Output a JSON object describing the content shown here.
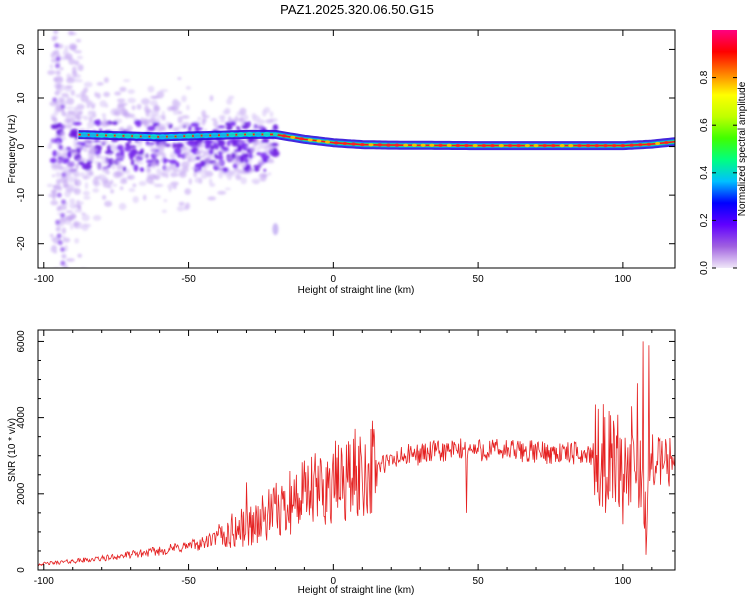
{
  "title": "PAZ1.2025.320.06.50.G15",
  "spectrogram": {
    "type": "heatmap",
    "xlabel": "Height of straight line (km)",
    "ylabel": "Frequency (Hz)",
    "xlim": [
      -102,
      118
    ],
    "ylim": [
      -25,
      24
    ],
    "xticks": [
      -100,
      -50,
      0,
      50,
      100
    ],
    "yticks": [
      -20,
      -10,
      0,
      10,
      20
    ],
    "colorbar": {
      "label": "Normalized spectral amplitude",
      "range": [
        0.0,
        1.0
      ],
      "ticks": [
        "0.0",
        "0.2",
        "0.4",
        "0.6",
        "0.8"
      ],
      "stops": [
        "#f0e8f8",
        "#a060e0",
        "#6000ff",
        "#0000ff",
        "#00c0ff",
        "#00ff80",
        "#40ff00",
        "#c0ff00",
        "#ffff00",
        "#ff8000",
        "#ff0000",
        "#ff0080"
      ]
    },
    "ridge": {
      "x": [
        -90,
        -60,
        -30,
        -20,
        -10,
        0,
        10,
        20,
        50,
        100,
        110,
        118
      ],
      "freq": [
        2.5,
        2.0,
        2.5,
        2.5,
        1.5,
        0.8,
        0.4,
        0.3,
        0.2,
        0.2,
        0.5,
        1.0
      ]
    }
  },
  "snr": {
    "type": "line",
    "xlabel": "Height of straight line (km)",
    "ylabel": "SNR (10 * v/v)",
    "xlim": [
      -102,
      118
    ],
    "ylim": [
      0,
      6300
    ],
    "xticks": [
      -100,
      -50,
      0,
      50,
      100
    ],
    "yticks": [
      0,
      2000,
      4000,
      6000
    ],
    "color": "#e52222",
    "trend": {
      "x": [
        -102,
        -80,
        -60,
        -45,
        -35,
        -25,
        -18,
        -12,
        -5,
        5,
        15,
        25,
        35,
        45,
        55,
        70,
        85,
        95,
        100,
        105,
        108,
        110,
        112,
        118
      ],
      "y": [
        150,
        300,
        500,
        700,
        1000,
        1300,
        1600,
        1850,
        2100,
        2400,
        2700,
        3000,
        3100,
        3150,
        3150,
        3100,
        3050,
        3000,
        2800,
        2400,
        1500,
        2900,
        2850,
        2850
      ]
    },
    "spikes": [
      {
        "x": -15,
        "y": 2600
      },
      {
        "x": -30,
        "y": 2300
      },
      {
        "x": 13,
        "y": 3700
      },
      {
        "x": 46,
        "y": 4200
      },
      {
        "x": 46,
        "y": 1500
      },
      {
        "x": 103,
        "y": 4300
      },
      {
        "x": 105,
        "y": 4900
      },
      {
        "x": 106,
        "y": 3400
      },
      {
        "x": 107,
        "y": 6000
      },
      {
        "x": 108,
        "y": 6300
      },
      {
        "x": 109,
        "y": 5900
      },
      {
        "x": 108,
        "y": 400
      },
      {
        "x": 100,
        "y": 1200
      },
      {
        "x": 94,
        "y": 1500
      }
    ]
  }
}
